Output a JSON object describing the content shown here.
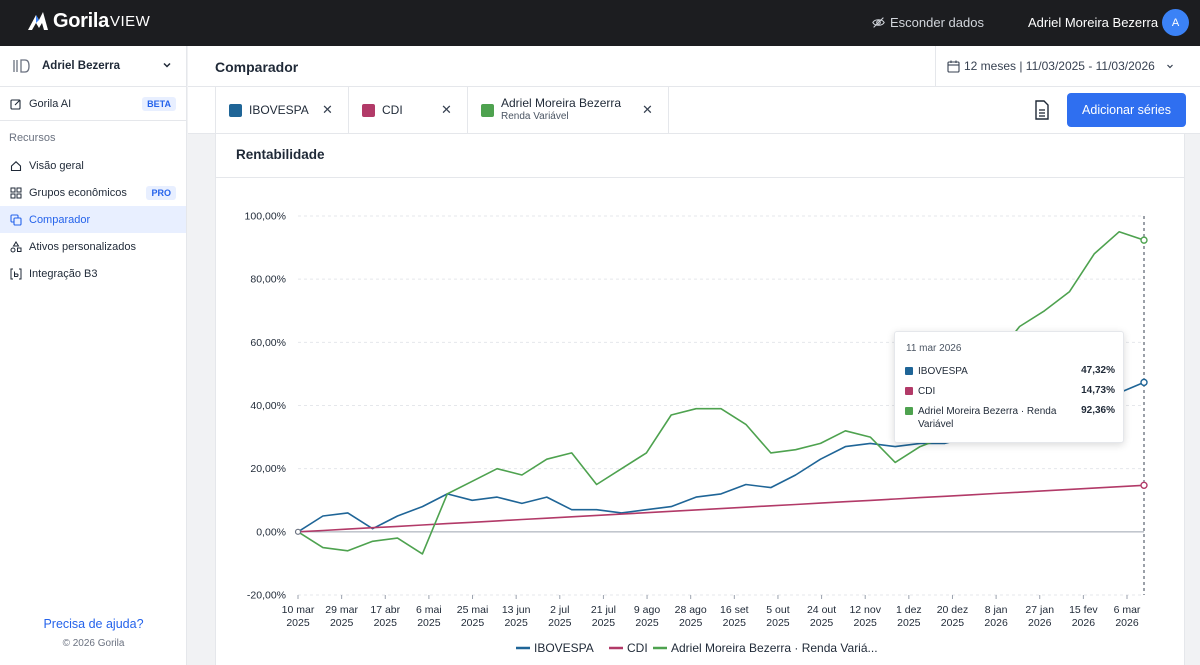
{
  "topbar": {
    "logo_main": "Gorila",
    "logo_sub": "VIEW",
    "hide_data": "Esconder dados",
    "user_name": "Adriel Moreira Bezerra",
    "avatar_initial": "A"
  },
  "sidebar": {
    "account": "Adriel Bezerra",
    "ai": {
      "label": "Gorila AI",
      "badge": "BETA"
    },
    "section": "Recursos",
    "items": [
      {
        "label": "Visão geral",
        "icon": "home-icon"
      },
      {
        "label": "Grupos econômicos",
        "icon": "grid-icon",
        "badge": "PRO"
      },
      {
        "label": "Comparador",
        "icon": "compare-icon",
        "active": true
      },
      {
        "label": "Ativos personalizados",
        "icon": "shapes-icon"
      },
      {
        "label": "Integração B3",
        "icon": "b3-icon"
      }
    ],
    "help": "Precisa de ajuda?",
    "copyright": "© 2026 Gorila"
  },
  "header": {
    "title": "Comparador",
    "date_range": "12 meses | 11/03/2025 - 11/03/2026"
  },
  "series_bar": {
    "chips": [
      {
        "label": "IBOVESPA",
        "sub": "",
        "color": "#1f6597"
      },
      {
        "label": "CDI",
        "sub": "",
        "color": "#b23a68"
      },
      {
        "label": "Adriel Moreira Bezerra",
        "sub": "Renda Variável",
        "color": "#4ea24f"
      }
    ],
    "add_label": "Adicionar séries"
  },
  "card": {
    "title": "Rentabilidade"
  },
  "chart_data": {
    "type": "line",
    "title": "Rentabilidade",
    "ylim": [
      -20,
      100
    ],
    "yticks": [
      "100,00%",
      "80,00%",
      "60,00%",
      "40,00%",
      "20,00%",
      "0,00%",
      "-20,00%"
    ],
    "xticks": [
      [
        "10 mar",
        "2025"
      ],
      [
        "29 mar",
        "2025"
      ],
      [
        "17 abr",
        "2025"
      ],
      [
        "6 mai",
        "2025"
      ],
      [
        "25 mai",
        "2025"
      ],
      [
        "13 jun",
        "2025"
      ],
      [
        "2 jul",
        "2025"
      ],
      [
        "21 jul",
        "2025"
      ],
      [
        "9 ago",
        "2025"
      ],
      [
        "28 ago",
        "2025"
      ],
      [
        "16 set",
        "2025"
      ],
      [
        "5 out",
        "2025"
      ],
      [
        "24 out",
        "2025"
      ],
      [
        "12 nov",
        "2025"
      ],
      [
        "1 dez",
        "2025"
      ],
      [
        "20 dez",
        "2025"
      ],
      [
        "8 jan",
        "2026"
      ],
      [
        "27 jan",
        "2026"
      ],
      [
        "15 fev",
        "2026"
      ],
      [
        "6 mar",
        "2026"
      ]
    ],
    "legend": [
      "IBOVESPA",
      "CDI",
      "Adriel Moreira Bezerra · Renda Variá..."
    ],
    "colors": [
      "#1f6597",
      "#b23a68",
      "#4ea24f"
    ],
    "series": [
      {
        "name": "IBOVESPA",
        "values": [
          0,
          5,
          6,
          1,
          5,
          8,
          12,
          10,
          11,
          9,
          11,
          7,
          7,
          6,
          7,
          8,
          11,
          12,
          15,
          14,
          18,
          23,
          27,
          28,
          27,
          28,
          28,
          30,
          33,
          36,
          42,
          44,
          48,
          44,
          47.32
        ]
      },
      {
        "name": "CDI",
        "values": [
          0,
          0.43,
          0.86,
          1.3,
          1.73,
          2.16,
          2.6,
          3.03,
          3.46,
          3.9,
          4.33,
          4.76,
          5.2,
          5.63,
          6.06,
          6.5,
          6.93,
          7.36,
          7.8,
          8.23,
          8.66,
          9.1,
          9.53,
          9.96,
          10.4,
          10.83,
          11.26,
          11.7,
          12.13,
          12.56,
          13,
          13.43,
          13.86,
          14.3,
          14.73
        ]
      },
      {
        "name": "Adriel Moreira Bezerra · Renda Variável",
        "values": [
          0,
          -5,
          -6,
          -3,
          -2,
          -7,
          12,
          16,
          20,
          18,
          23,
          25,
          15,
          20,
          25,
          37,
          39,
          39,
          34,
          25,
          26,
          28,
          32,
          30,
          22,
          27,
          30,
          40,
          55,
          65,
          70,
          76,
          88,
          95,
          92.36
        ]
      }
    ]
  },
  "tooltip": {
    "date": "11 mar 2026",
    "rows": [
      {
        "name": "IBOVESPA",
        "value": "47,32%",
        "color": "#1f6597"
      },
      {
        "name": "CDI",
        "value": "14,73%",
        "color": "#b23a68"
      },
      {
        "name": "Adriel Moreira Bezerra · Renda Variável",
        "value": "92,36%",
        "color": "#4ea24f"
      }
    ]
  }
}
